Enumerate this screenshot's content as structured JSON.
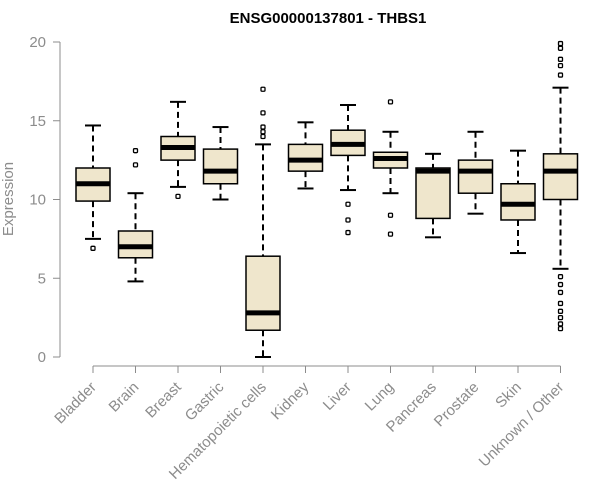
{
  "chart_data": {
    "type": "boxplot",
    "title": "ENSG00000137801 - THBS1",
    "xlabel": "",
    "ylabel": "Expression",
    "ylim": [
      0,
      20
    ],
    "yticks": [
      0,
      5,
      10,
      15,
      20
    ],
    "categories": [
      "Bladder",
      "Brain",
      "Breast",
      "Gastric",
      "Hematopoietic cells",
      "Kidney",
      "Liver",
      "Lung",
      "Pancreas",
      "Prostate",
      "Skin",
      "Unknown / Other"
    ],
    "boxes": [
      {
        "name": "Bladder",
        "whisker_low": 7.5,
        "q1": 9.9,
        "median": 11.0,
        "q3": 12.0,
        "whisker_high": 14.7,
        "outliers": [
          6.9
        ]
      },
      {
        "name": "Brain",
        "whisker_low": 4.8,
        "q1": 6.3,
        "median": 7.0,
        "q3": 8.0,
        "whisker_high": 10.4,
        "outliers": [
          12.2,
          13.1
        ]
      },
      {
        "name": "Breast",
        "whisker_low": 10.8,
        "q1": 12.5,
        "median": 13.3,
        "q3": 14.0,
        "whisker_high": 16.2,
        "outliers": [
          10.2
        ]
      },
      {
        "name": "Gastric",
        "whisker_low": 10.0,
        "q1": 11.0,
        "median": 11.8,
        "q3": 13.2,
        "whisker_high": 14.6,
        "outliers": []
      },
      {
        "name": "Hematopoietic cells",
        "whisker_low": 0.0,
        "q1": 1.7,
        "median": 2.8,
        "q3": 6.4,
        "whisker_high": 13.5,
        "outliers": [
          14.0,
          14.3,
          14.6,
          15.5,
          17.0
        ]
      },
      {
        "name": "Kidney",
        "whisker_low": 10.7,
        "q1": 11.8,
        "median": 12.5,
        "q3": 13.5,
        "whisker_high": 14.9,
        "outliers": []
      },
      {
        "name": "Liver",
        "whisker_low": 10.6,
        "q1": 12.8,
        "median": 13.5,
        "q3": 14.4,
        "whisker_high": 16.0,
        "outliers": [
          7.9,
          8.7,
          9.7
        ]
      },
      {
        "name": "Lung",
        "whisker_low": 10.4,
        "q1": 12.0,
        "median": 12.6,
        "q3": 13.0,
        "whisker_high": 14.3,
        "outliers": [
          7.8,
          9.0,
          16.2
        ]
      },
      {
        "name": "Pancreas",
        "whisker_low": 7.6,
        "q1": 8.8,
        "median": 11.8,
        "q3": 12.0,
        "whisker_high": 12.9,
        "outliers": []
      },
      {
        "name": "Prostate",
        "whisker_low": 9.1,
        "q1": 10.4,
        "median": 11.8,
        "q3": 12.5,
        "whisker_high": 14.3,
        "outliers": []
      },
      {
        "name": "Skin",
        "whisker_low": 6.6,
        "q1": 8.7,
        "median": 9.7,
        "q3": 11.0,
        "whisker_high": 13.1,
        "outliers": []
      },
      {
        "name": "Unknown / Other",
        "whisker_low": 5.6,
        "q1": 10.0,
        "median": 11.8,
        "q3": 12.9,
        "whisker_high": 17.1,
        "outliers": [
          1.8,
          2.1,
          2.5,
          2.9,
          3.4,
          4.1,
          4.6,
          5.1,
          17.9,
          18.5,
          18.9,
          19.6,
          19.9
        ]
      }
    ],
    "colors": {
      "box_fill": "#EFE6CC",
      "box_stroke": "#000000",
      "axis": "#8c8c8c",
      "title": "#000000"
    }
  }
}
